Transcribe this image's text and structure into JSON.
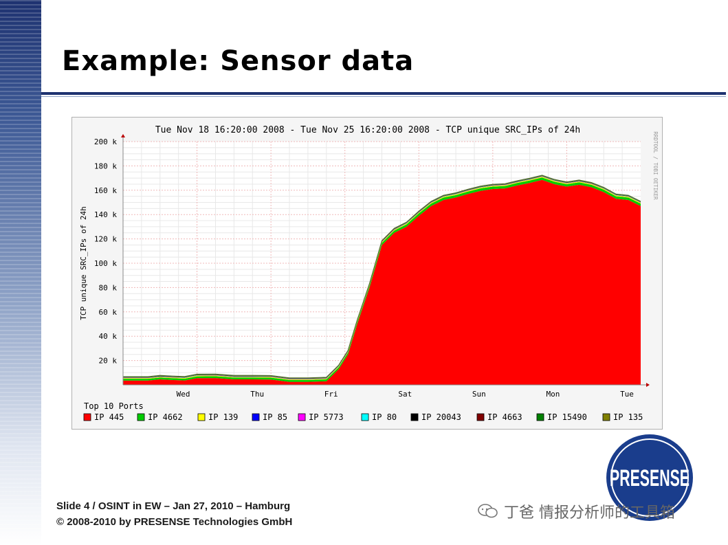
{
  "slide": {
    "title": "Example: Sensor data",
    "footer_line1": "Slide 4 / OSINT in EW – Jan 27, 2010 – Hamburg",
    "footer_line2": "© 2008-2010 by PRESENSE Technologies GmbH",
    "logo_text": "PRESENSE",
    "watermark_text": "丁爸 情报分析师的工具箱"
  },
  "colors": {
    "band_dark": "#1e3270",
    "logo_blue": "#1a3d8c",
    "chart_bg": "#f5f5f5",
    "plot_bg": "#ffffff"
  },
  "chart_data": {
    "type": "area",
    "title": "Tue Nov 18 16:20:00 2008 - Tue Nov 25 16:20:00 2008 - TCP unique SRC_IPs of 24h",
    "ylabel": "TCP unique SRC_IPs of 24h",
    "xlabel": "",
    "side_label": "RRDTOOL / TOBI OETIKER",
    "ylim": [
      0,
      200000
    ],
    "yticks": [
      20000,
      40000,
      60000,
      80000,
      100000,
      120000,
      140000,
      160000,
      180000,
      200000
    ],
    "ytick_labels": [
      "20 k",
      "40 k",
      "60 k",
      "80 k",
      "100 k",
      "120 k",
      "140 k",
      "160 k",
      "180 k",
      "200 k"
    ],
    "xlim": [
      0,
      168
    ],
    "xticks": [
      24,
      48,
      72,
      96,
      120,
      144,
      168
    ],
    "xtick_labels": [
      "Wed",
      "Thu",
      "Fri",
      "Sat",
      "Sun",
      "Mon",
      "Tue"
    ],
    "grid": true,
    "legend_title": "Top 10 Ports",
    "legend_placement": "bottom",
    "series": [
      {
        "name": "IP 445",
        "color": "#ff0000",
        "x": [
          0,
          8,
          12,
          16,
          20,
          24,
          30,
          36,
          42,
          48,
          54,
          60,
          66,
          70,
          73,
          76,
          80,
          84,
          88,
          92,
          96,
          100,
          104,
          108,
          112,
          116,
          120,
          124,
          128,
          132,
          136,
          140,
          144,
          148,
          152,
          156,
          160,
          164,
          168
        ],
        "y": [
          3500,
          3500,
          4500,
          4000,
          3600,
          5500,
          5600,
          4500,
          4500,
          4400,
          2500,
          2500,
          3000,
          13000,
          25000,
          50000,
          80000,
          115000,
          125000,
          130000,
          139000,
          147000,
          152000,
          154000,
          157000,
          159500,
          161000,
          161500,
          164000,
          166000,
          168500,
          165000,
          163000,
          164500,
          162500,
          158500,
          153000,
          152000,
          147000
        ]
      },
      {
        "name": "IP 4662",
        "color": "#00cc00",
        "x": [
          0,
          24,
          48,
          72,
          96,
          120,
          144,
          168
        ],
        "y": [
          1500,
          1500,
          1500,
          1500,
          2000,
          2000,
          2000,
          2000
        ]
      },
      {
        "name": "IP 139",
        "color": "#ffff00",
        "x": [
          0,
          24,
          48,
          72,
          96,
          120,
          144,
          168
        ],
        "y": [
          600,
          600,
          600,
          600,
          700,
          700,
          700,
          700
        ]
      },
      {
        "name": "IP 85",
        "color": "#0000ff",
        "x": [
          0,
          24,
          48,
          72,
          96,
          120,
          144,
          168
        ],
        "y": [
          150,
          150,
          150,
          150,
          150,
          150,
          150,
          150
        ]
      },
      {
        "name": "IP 5773",
        "color": "#ff00ff",
        "x": [
          0,
          24,
          48,
          72,
          96,
          120,
          144,
          168
        ],
        "y": [
          100,
          100,
          100,
          100,
          100,
          100,
          100,
          100
        ]
      },
      {
        "name": "IP 80",
        "color": "#00ffff",
        "x": [
          0,
          24,
          48,
          72,
          96,
          120,
          144,
          168
        ],
        "y": [
          100,
          100,
          100,
          100,
          100,
          100,
          100,
          100
        ]
      },
      {
        "name": "IP 20043",
        "color": "#000000",
        "x": [
          0,
          24,
          48,
          72,
          96,
          120,
          144,
          168
        ],
        "y": [
          150,
          150,
          150,
          150,
          150,
          150,
          150,
          150
        ]
      },
      {
        "name": "IP 4663",
        "color": "#800000",
        "x": [
          0,
          24,
          48,
          72,
          96,
          120,
          144,
          168
        ],
        "y": [
          100,
          100,
          100,
          100,
          100,
          100,
          100,
          100
        ]
      },
      {
        "name": "IP 15490",
        "color": "#008000",
        "x": [
          0,
          24,
          48,
          72,
          96,
          120,
          144,
          168
        ],
        "y": [
          300,
          300,
          300,
          300,
          300,
          300,
          300,
          300
        ]
      },
      {
        "name": "IP 135",
        "color": "#808000",
        "x": [
          0,
          24,
          48,
          72,
          96,
          120,
          144,
          168
        ],
        "y": [
          250,
          250,
          250,
          250,
          250,
          250,
          250,
          250
        ]
      }
    ]
  }
}
